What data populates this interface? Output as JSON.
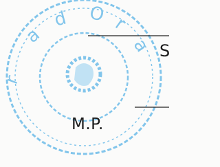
{
  "document": {
    "stamp_label": "M.P.",
    "signature_label": "S"
  }
}
